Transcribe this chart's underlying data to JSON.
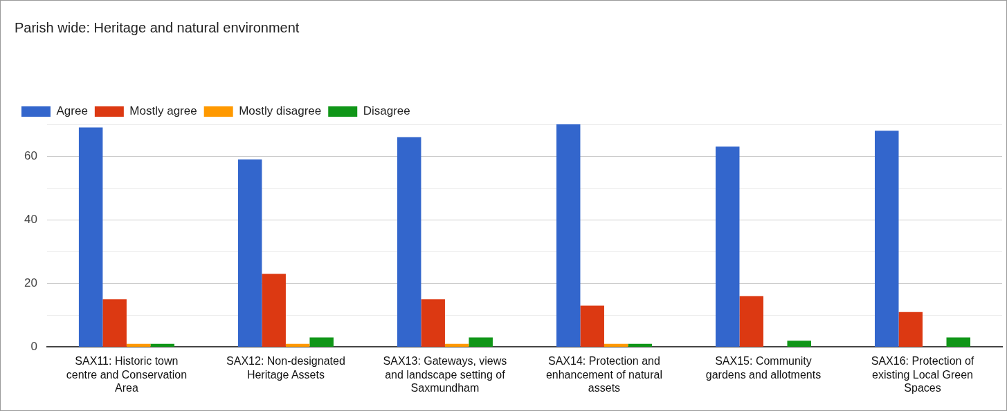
{
  "chart_data": {
    "type": "bar",
    "title": "Parish wide: Heritage and natural environment",
    "categories": [
      "SAX11: Historic town centre and Conservation Area",
      "SAX12: Non-designated Heritage Assets",
      "SAX13: Gateways, views and landscape setting of Saxmundham",
      "SAX14: Protection and enhancement of natural assets",
      "SAX15: Community gardens and allotments",
      "SAX16: Protection of existing Local Green Spaces"
    ],
    "series": [
      {
        "name": "Agree",
        "color": "#3366cc",
        "values": [
          69,
          59,
          66,
          70,
          63,
          68
        ]
      },
      {
        "name": "Mostly agree",
        "color": "#dc3912",
        "values": [
          15,
          23,
          15,
          13,
          16,
          11
        ]
      },
      {
        "name": "Mostly disagree",
        "color": "#ff9900",
        "values": [
          1,
          1,
          1,
          1,
          0,
          0
        ]
      },
      {
        "name": "Disagree",
        "color": "#109618",
        "values": [
          1,
          3,
          3,
          1,
          2,
          3
        ]
      }
    ],
    "ylim": [
      0,
      70
    ],
    "yticks": [
      0,
      {
        "value": 10,
        "label": null
      },
      20,
      {
        "value": 30,
        "label": null
      },
      40,
      {
        "value": 50,
        "label": null
      },
      60,
      {
        "value": 70,
        "label": null
      }
    ],
    "grid": "y",
    "legend": "top left"
  }
}
